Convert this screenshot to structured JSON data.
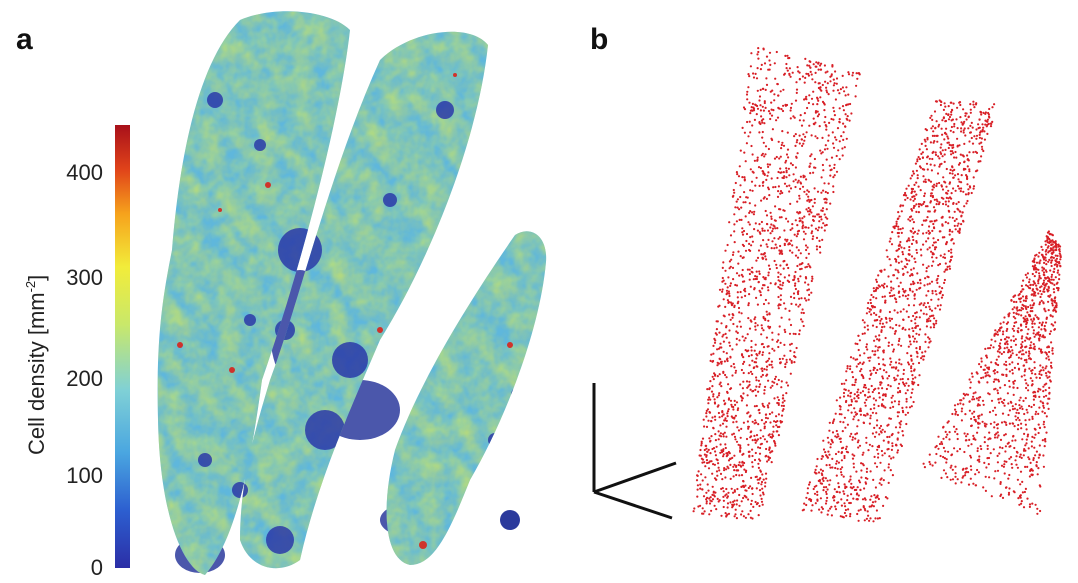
{
  "panels": [
    {
      "label": "a"
    },
    {
      "label": "b"
    }
  ],
  "colorbar": {
    "title": "Cell density [mm",
    "title_sup": "-2",
    "title_end": "]",
    "ticks": [
      "0",
      "100",
      "200",
      "300",
      "400"
    ],
    "colormap": [
      "#2b2ea6",
      "#2d5fd0",
      "#4aa6e0",
      "#7fd0d6",
      "#c9e86a",
      "#f2ec3a",
      "#f6a21c",
      "#e0431a",
      "#a8101a"
    ]
  },
  "colors": {
    "points": "#d81f26",
    "axes": "#111111"
  }
}
